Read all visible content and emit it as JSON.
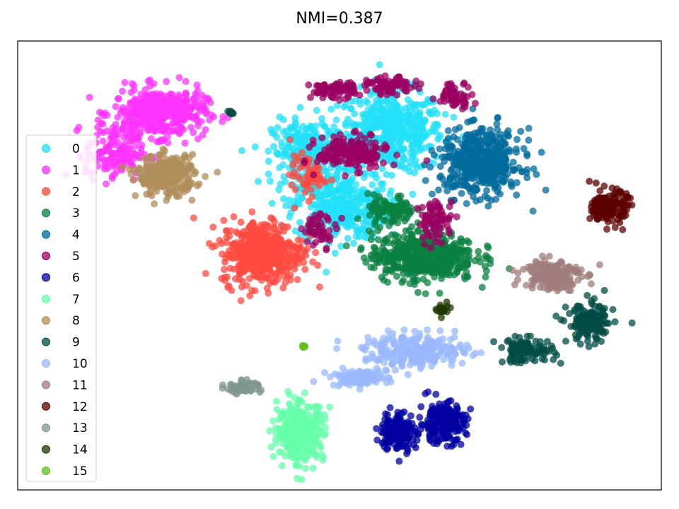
{
  "chart_data": {
    "type": "scatter",
    "title": "NMI=0.387",
    "xlabel": "",
    "ylabel": "",
    "xlim": [
      0,
      100
    ],
    "ylim": [
      0,
      100
    ],
    "axis_ticks": "none",
    "grid": false,
    "legend_placement": "center-left",
    "clusters": [
      {
        "label": "0",
        "color": "#22e0f8",
        "blobs": [
          [
            58,
            80,
            9,
            10,
            500
          ],
          [
            50,
            63,
            8,
            8,
            350
          ],
          [
            45,
            75,
            6,
            8,
            250
          ]
        ]
      },
      {
        "label": "1",
        "color": "#ff33ff",
        "blobs": [
          [
            22,
            84,
            8,
            6,
            400
          ],
          [
            15,
            75,
            5,
            7,
            150
          ]
        ]
      },
      {
        "label": "2",
        "color": "#ff4a40",
        "blobs": [
          [
            38,
            53,
            7,
            8,
            450
          ],
          [
            45,
            70,
            3,
            5,
            60
          ]
        ]
      },
      {
        "label": "3",
        "color": "#0a8040",
        "blobs": [
          [
            63,
            52,
            9,
            6,
            500
          ],
          [
            58,
            62,
            4,
            4,
            100
          ]
        ]
      },
      {
        "label": "4",
        "color": "#006b9c",
        "blobs": [
          [
            72,
            73,
            7,
            8,
            500
          ]
        ]
      },
      {
        "label": "5",
        "color": "#9a0060",
        "blobs": [
          [
            52,
            75,
            6,
            4,
            200
          ],
          [
            49,
            89,
            4,
            2,
            80
          ],
          [
            58,
            90,
            4,
            2,
            80
          ],
          [
            68,
            88,
            3,
            3,
            60
          ],
          [
            65,
            60,
            3,
            5,
            80
          ],
          [
            47,
            58,
            3,
            4,
            50
          ]
        ]
      },
      {
        "label": "6",
        "color": "#0000a0",
        "blobs": [
          [
            59,
            13,
            3,
            5,
            150
          ],
          [
            66,
            15,
            4,
            5,
            200
          ]
        ]
      },
      {
        "label": "7",
        "color": "#66ffaa",
        "blobs": [
          [
            44,
            13,
            4,
            7,
            350
          ]
        ]
      },
      {
        "label": "8",
        "color": "#b08d5a",
        "blobs": [
          [
            23,
            70,
            5,
            5,
            250
          ]
        ]
      },
      {
        "label": "9",
        "color": "#004c44",
        "blobs": [
          [
            89,
            37,
            4,
            5,
            150
          ],
          [
            79,
            31,
            5,
            3,
            100
          ],
          [
            33,
            84,
            0.5,
            0.5,
            8
          ]
        ]
      },
      {
        "label": "10",
        "color": "#99b8ff",
        "blobs": [
          [
            62,
            31,
            9,
            4,
            250
          ],
          [
            53,
            25,
            5,
            2,
            100
          ]
        ]
      },
      {
        "label": "11",
        "color": "#a07c7c",
        "blobs": [
          [
            83,
            48,
            5,
            4,
            180
          ]
        ]
      },
      {
        "label": "12",
        "color": "#5c0000",
        "blobs": [
          [
            92,
            63,
            3,
            4,
            150
          ]
        ]
      },
      {
        "label": "13",
        "color": "#809590",
        "blobs": [
          [
            35,
            23,
            3,
            1.5,
            60
          ]
        ]
      },
      {
        "label": "14",
        "color": "#203800",
        "blobs": [
          [
            66,
            40,
            1,
            1.5,
            25
          ]
        ]
      },
      {
        "label": "15",
        "color": "#60c020",
        "blobs": [
          [
            44.5,
            32,
            0.4,
            0.6,
            8
          ]
        ]
      }
    ]
  }
}
